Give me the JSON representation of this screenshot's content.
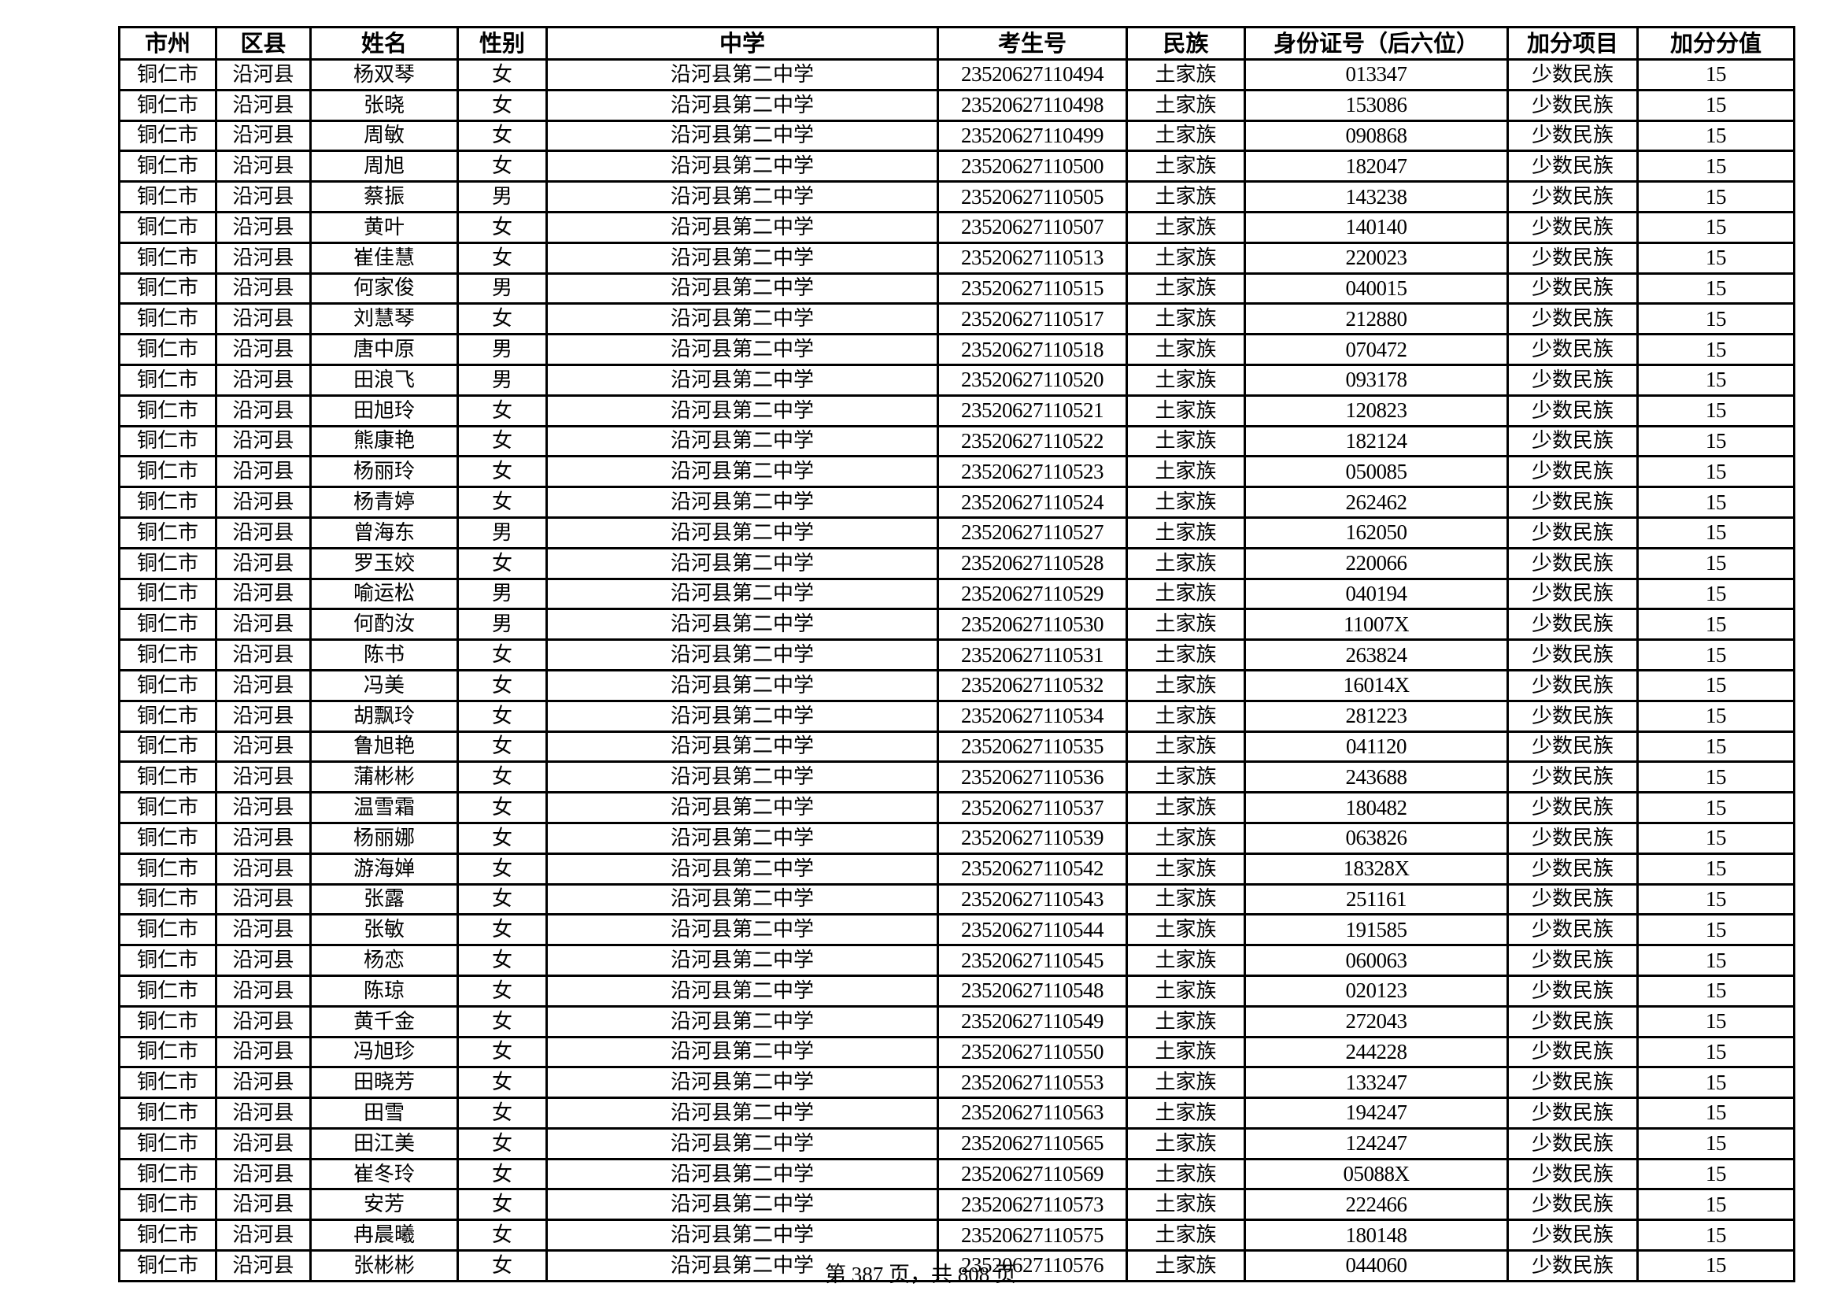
{
  "columns": [
    "市州",
    "区县",
    "姓名",
    "性别",
    "中学",
    "考生号",
    "民族",
    "身份证号（后六位）",
    "加分项目",
    "加分分值"
  ],
  "rows": [
    [
      "铜仁市",
      "沿河县",
      "杨双琴",
      "女",
      "沿河县第二中学",
      "23520627110494",
      "土家族",
      "013347",
      "少数民族",
      "15"
    ],
    [
      "铜仁市",
      "沿河县",
      "张晓",
      "女",
      "沿河县第二中学",
      "23520627110498",
      "土家族",
      "153086",
      "少数民族",
      "15"
    ],
    [
      "铜仁市",
      "沿河县",
      "周敏",
      "女",
      "沿河县第二中学",
      "23520627110499",
      "土家族",
      "090868",
      "少数民族",
      "15"
    ],
    [
      "铜仁市",
      "沿河县",
      "周旭",
      "女",
      "沿河县第二中学",
      "23520627110500",
      "土家族",
      "182047",
      "少数民族",
      "15"
    ],
    [
      "铜仁市",
      "沿河县",
      "蔡振",
      "男",
      "沿河县第二中学",
      "23520627110505",
      "土家族",
      "143238",
      "少数民族",
      "15"
    ],
    [
      "铜仁市",
      "沿河县",
      "黄叶",
      "女",
      "沿河县第二中学",
      "23520627110507",
      "土家族",
      "140140",
      "少数民族",
      "15"
    ],
    [
      "铜仁市",
      "沿河县",
      "崔佳慧",
      "女",
      "沿河县第二中学",
      "23520627110513",
      "土家族",
      "220023",
      "少数民族",
      "15"
    ],
    [
      "铜仁市",
      "沿河县",
      "何家俊",
      "男",
      "沿河县第二中学",
      "23520627110515",
      "土家族",
      "040015",
      "少数民族",
      "15"
    ],
    [
      "铜仁市",
      "沿河县",
      "刘慧琴",
      "女",
      "沿河县第二中学",
      "23520627110517",
      "土家族",
      "212880",
      "少数民族",
      "15"
    ],
    [
      "铜仁市",
      "沿河县",
      "唐中原",
      "男",
      "沿河县第二中学",
      "23520627110518",
      "土家族",
      "070472",
      "少数民族",
      "15"
    ],
    [
      "铜仁市",
      "沿河县",
      "田浪飞",
      "男",
      "沿河县第二中学",
      "23520627110520",
      "土家族",
      "093178",
      "少数民族",
      "15"
    ],
    [
      "铜仁市",
      "沿河县",
      "田旭玲",
      "女",
      "沿河县第二中学",
      "23520627110521",
      "土家族",
      "120823",
      "少数民族",
      "15"
    ],
    [
      "铜仁市",
      "沿河县",
      "熊康艳",
      "女",
      "沿河县第二中学",
      "23520627110522",
      "土家族",
      "182124",
      "少数民族",
      "15"
    ],
    [
      "铜仁市",
      "沿河县",
      "杨丽玲",
      "女",
      "沿河县第二中学",
      "23520627110523",
      "土家族",
      "050085",
      "少数民族",
      "15"
    ],
    [
      "铜仁市",
      "沿河县",
      "杨青婷",
      "女",
      "沿河县第二中学",
      "23520627110524",
      "土家族",
      "262462",
      "少数民族",
      "15"
    ],
    [
      "铜仁市",
      "沿河县",
      "曾海东",
      "男",
      "沿河县第二中学",
      "23520627110527",
      "土家族",
      "162050",
      "少数民族",
      "15"
    ],
    [
      "铜仁市",
      "沿河县",
      "罗玉姣",
      "女",
      "沿河县第二中学",
      "23520627110528",
      "土家族",
      "220066",
      "少数民族",
      "15"
    ],
    [
      "铜仁市",
      "沿河县",
      "喻运松",
      "男",
      "沿河县第二中学",
      "23520627110529",
      "土家族",
      "040194",
      "少数民族",
      "15"
    ],
    [
      "铜仁市",
      "沿河县",
      "何酌汝",
      "男",
      "沿河县第二中学",
      "23520627110530",
      "土家族",
      "11007X",
      "少数民族",
      "15"
    ],
    [
      "铜仁市",
      "沿河县",
      "陈书",
      "女",
      "沿河县第二中学",
      "23520627110531",
      "土家族",
      "263824",
      "少数民族",
      "15"
    ],
    [
      "铜仁市",
      "沿河县",
      "冯美",
      "女",
      "沿河县第二中学",
      "23520627110532",
      "土家族",
      "16014X",
      "少数民族",
      "15"
    ],
    [
      "铜仁市",
      "沿河县",
      "胡飘玲",
      "女",
      "沿河县第二中学",
      "23520627110534",
      "土家族",
      "281223",
      "少数民族",
      "15"
    ],
    [
      "铜仁市",
      "沿河县",
      "鲁旭艳",
      "女",
      "沿河县第二中学",
      "23520627110535",
      "土家族",
      "041120",
      "少数民族",
      "15"
    ],
    [
      "铜仁市",
      "沿河县",
      "蒲彬彬",
      "女",
      "沿河县第二中学",
      "23520627110536",
      "土家族",
      "243688",
      "少数民族",
      "15"
    ],
    [
      "铜仁市",
      "沿河县",
      "温雪霜",
      "女",
      "沿河县第二中学",
      "23520627110537",
      "土家族",
      "180482",
      "少数民族",
      "15"
    ],
    [
      "铜仁市",
      "沿河县",
      "杨丽娜",
      "女",
      "沿河县第二中学",
      "23520627110539",
      "土家族",
      "063826",
      "少数民族",
      "15"
    ],
    [
      "铜仁市",
      "沿河县",
      "游海婵",
      "女",
      "沿河县第二中学",
      "23520627110542",
      "土家族",
      "18328X",
      "少数民族",
      "15"
    ],
    [
      "铜仁市",
      "沿河县",
      "张露",
      "女",
      "沿河县第二中学",
      "23520627110543",
      "土家族",
      "251161",
      "少数民族",
      "15"
    ],
    [
      "铜仁市",
      "沿河县",
      "张敏",
      "女",
      "沿河县第二中学",
      "23520627110544",
      "土家族",
      "191585",
      "少数民族",
      "15"
    ],
    [
      "铜仁市",
      "沿河县",
      "杨恋",
      "女",
      "沿河县第二中学",
      "23520627110545",
      "土家族",
      "060063",
      "少数民族",
      "15"
    ],
    [
      "铜仁市",
      "沿河县",
      "陈琼",
      "女",
      "沿河县第二中学",
      "23520627110548",
      "土家族",
      "020123",
      "少数民族",
      "15"
    ],
    [
      "铜仁市",
      "沿河县",
      "黄千金",
      "女",
      "沿河县第二中学",
      "23520627110549",
      "土家族",
      "272043",
      "少数民族",
      "15"
    ],
    [
      "铜仁市",
      "沿河县",
      "冯旭珍",
      "女",
      "沿河县第二中学",
      "23520627110550",
      "土家族",
      "244228",
      "少数民族",
      "15"
    ],
    [
      "铜仁市",
      "沿河县",
      "田晓芳",
      "女",
      "沿河县第二中学",
      "23520627110553",
      "土家族",
      "133247",
      "少数民族",
      "15"
    ],
    [
      "铜仁市",
      "沿河县",
      "田雪",
      "女",
      "沿河县第二中学",
      "23520627110563",
      "土家族",
      "194247",
      "少数民族",
      "15"
    ],
    [
      "铜仁市",
      "沿河县",
      "田江美",
      "女",
      "沿河县第二中学",
      "23520627110565",
      "土家族",
      "124247",
      "少数民族",
      "15"
    ],
    [
      "铜仁市",
      "沿河县",
      "崔冬玲",
      "女",
      "沿河县第二中学",
      "23520627110569",
      "土家族",
      "05088X",
      "少数民族",
      "15"
    ],
    [
      "铜仁市",
      "沿河县",
      "安芳",
      "女",
      "沿河县第二中学",
      "23520627110573",
      "土家族",
      "222466",
      "少数民族",
      "15"
    ],
    [
      "铜仁市",
      "沿河县",
      "冉晨曦",
      "女",
      "沿河县第二中学",
      "23520627110575",
      "土家族",
      "180148",
      "少数民族",
      "15"
    ],
    [
      "铜仁市",
      "沿河县",
      "张彬彬",
      "女",
      "沿河县第二中学",
      "23520627110576",
      "土家族",
      "044060",
      "少数民族",
      "15"
    ]
  ],
  "footer": "第 387 页，共 808 页"
}
